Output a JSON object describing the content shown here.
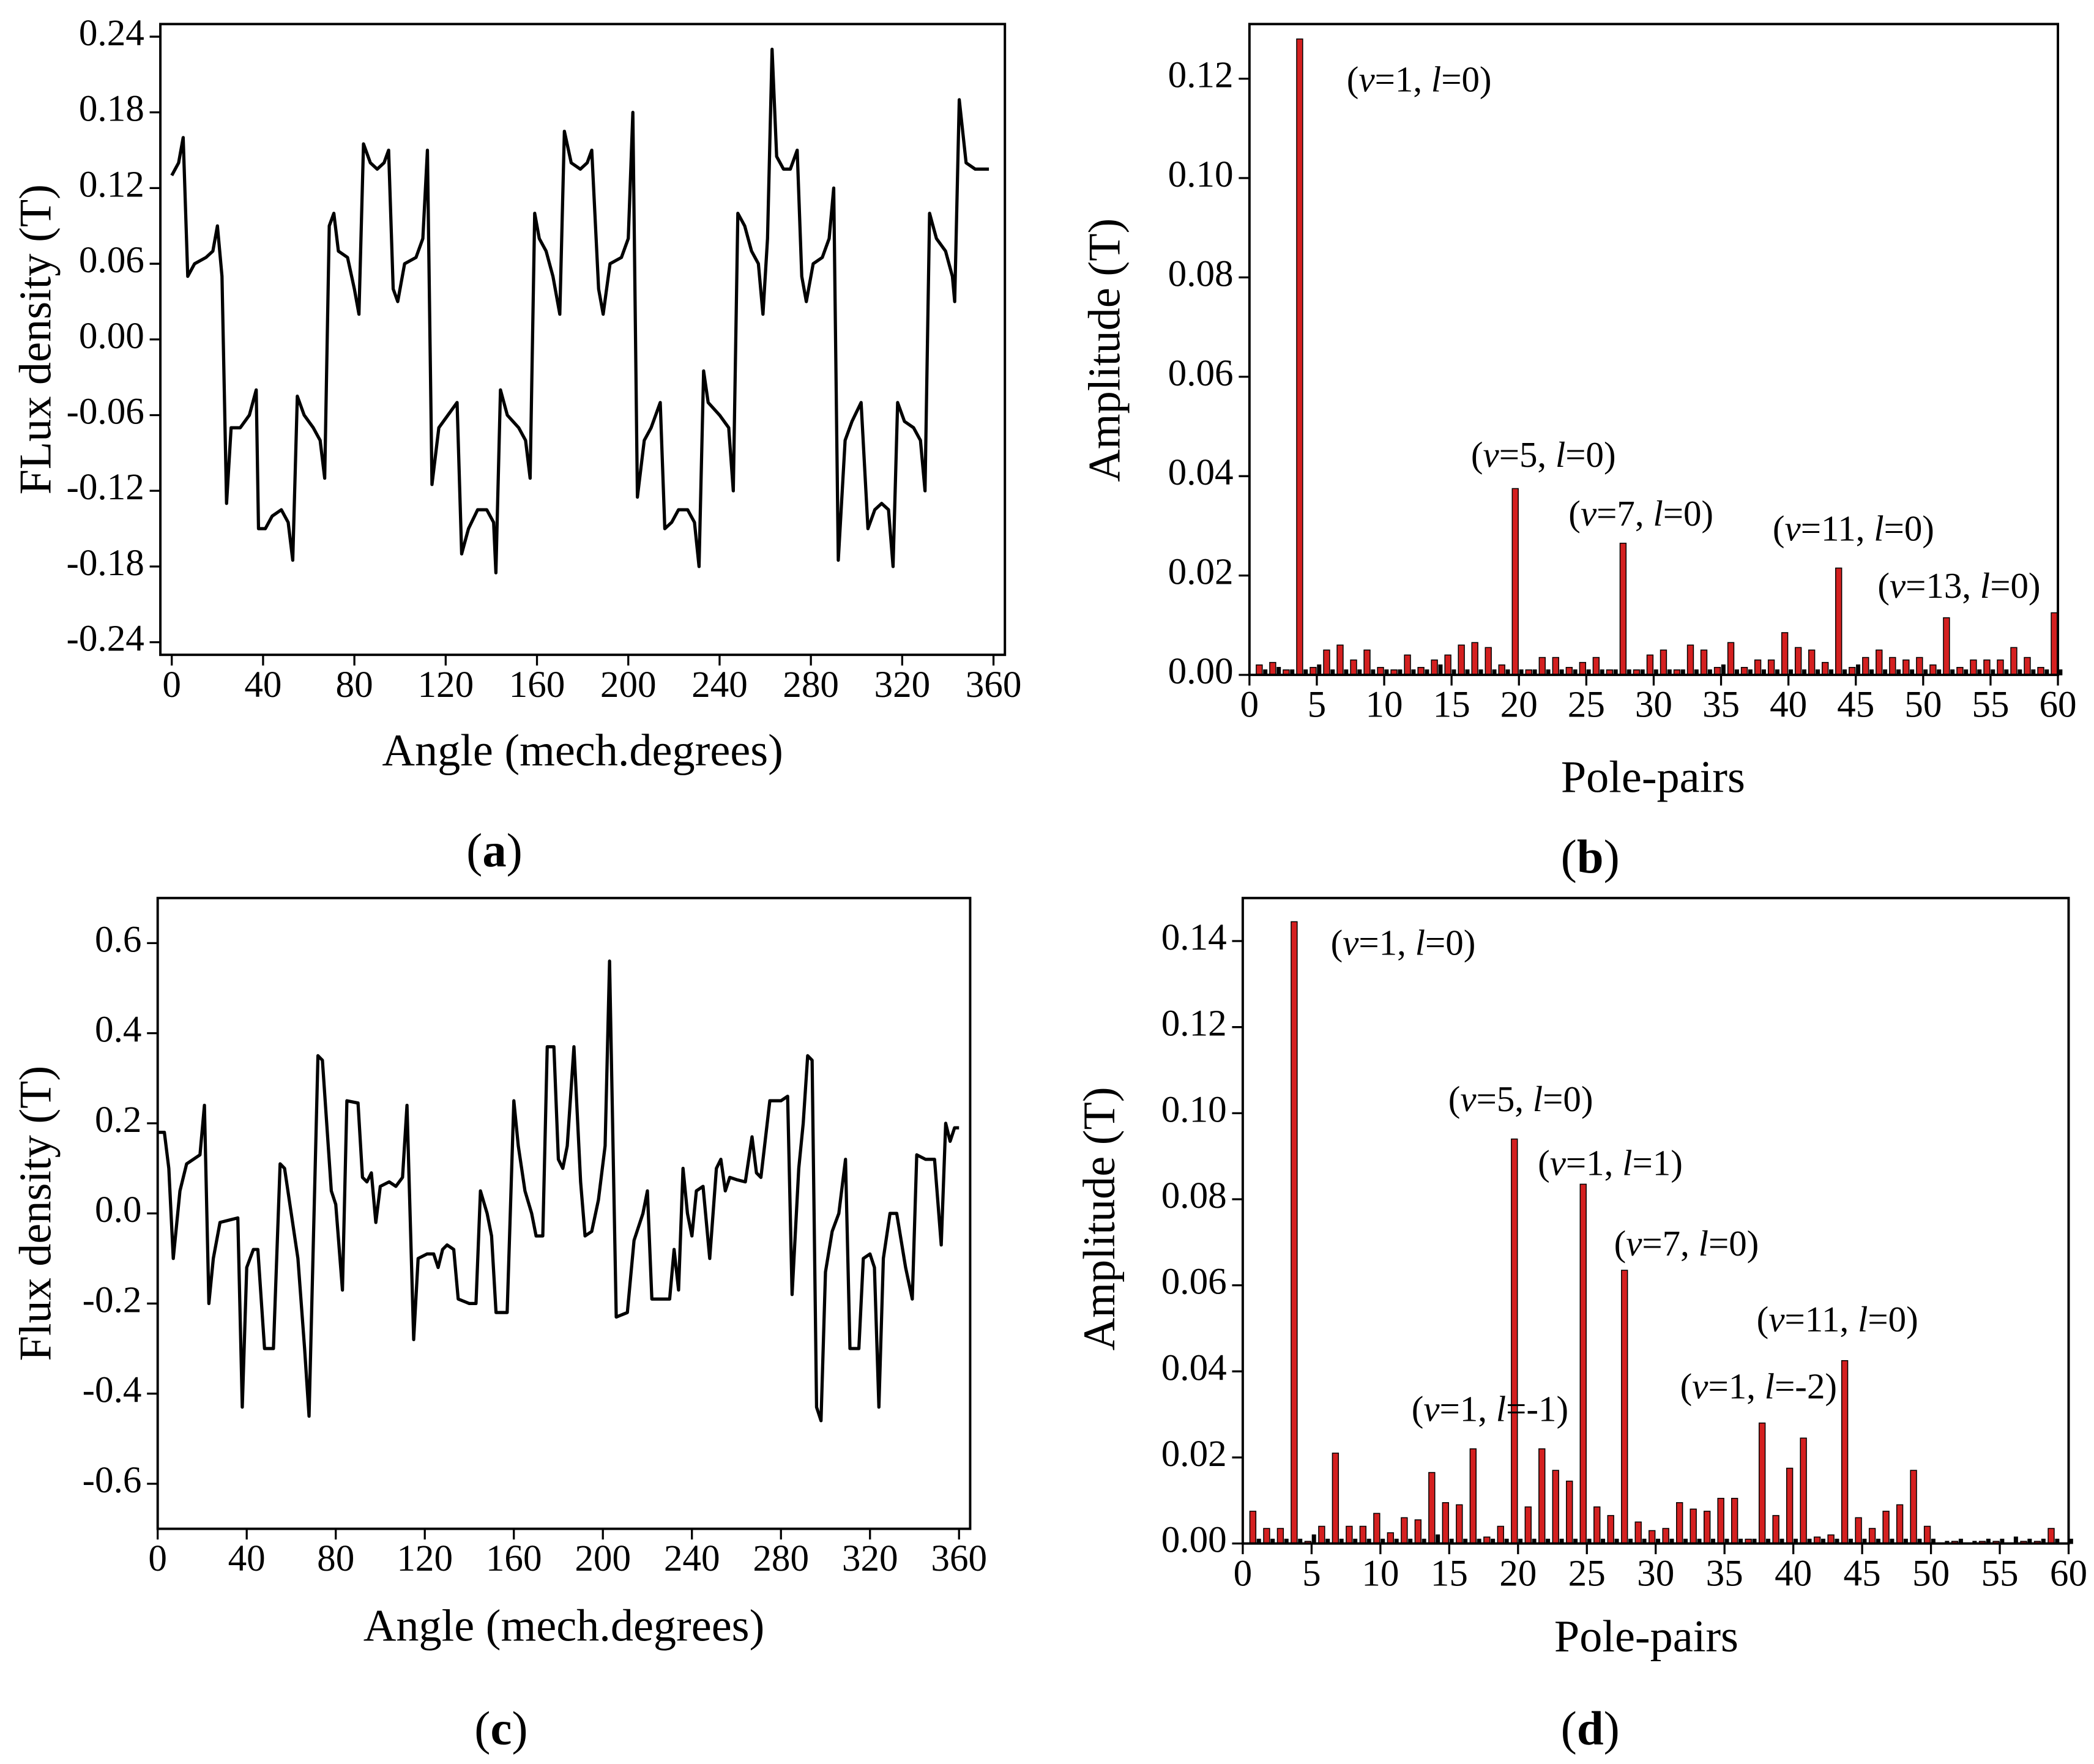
{
  "chart_data": [
    {
      "type": "line",
      "caption": "(a)",
      "xlabel": "Angle (mech.degrees)",
      "ylabel": "FLux density (T)",
      "color": "#000000",
      "xlim": [
        -5,
        365
      ],
      "ylim": [
        -0.25,
        0.25
      ],
      "xticks": [
        0,
        40,
        80,
        120,
        160,
        200,
        240,
        280,
        320,
        360
      ],
      "yticks": [
        -0.24,
        -0.18,
        -0.12,
        -0.06,
        {
          "value": 0,
          "label": "0.00"
        },
        0.06,
        0.12,
        0.18,
        0.24
      ],
      "x": [
        0,
        3,
        5,
        7,
        10,
        15,
        18,
        20,
        22,
        24,
        26,
        30,
        34,
        37,
        38,
        41,
        44,
        48,
        51,
        53,
        55,
        58,
        62,
        65,
        67,
        69,
        71,
        73,
        77,
        80,
        82,
        84,
        87,
        90,
        93,
        95,
        97,
        99,
        102,
        107,
        110,
        112,
        114,
        117,
        121,
        125,
        127,
        130,
        134,
        138,
        141,
        142,
        144,
        147,
        152,
        155,
        157,
        159,
        161,
        164,
        167,
        170,
        172,
        175,
        179,
        182,
        184,
        187,
        189,
        192,
        197,
        200,
        202,
        204,
        207,
        210,
        214,
        216,
        219,
        222,
        226,
        229,
        231,
        233,
        235,
        240,
        244,
        246,
        248,
        251,
        254,
        257,
        259,
        261,
        263,
        265,
        268,
        271,
        274,
        276,
        278,
        281,
        285,
        288,
        290,
        292,
        295,
        298,
        302,
        305,
        308,
        311,
        314,
        316,
        318,
        321,
        325,
        328,
        330,
        332,
        335,
        339,
        342,
        343,
        345,
        348,
        352,
        358
      ],
      "values": [
        0.13,
        0.14,
        0.16,
        0.05,
        0.06,
        0.065,
        0.07,
        0.09,
        0.05,
        -0.13,
        -0.07,
        -0.07,
        -0.06,
        -0.04,
        -0.15,
        -0.15,
        -0.14,
        -0.135,
        -0.145,
        -0.175,
        -0.045,
        -0.06,
        -0.07,
        -0.08,
        -0.11,
        0.09,
        0.1,
        0.07,
        0.065,
        0.04,
        0.02,
        0.155,
        0.14,
        0.135,
        0.14,
        0.15,
        0.04,
        0.03,
        0.06,
        0.065,
        0.08,
        0.15,
        -0.115,
        -0.07,
        -0.06,
        -0.05,
        -0.17,
        -0.15,
        -0.135,
        -0.135,
        -0.145,
        -0.185,
        -0.04,
        -0.06,
        -0.07,
        -0.08,
        -0.11,
        0.1,
        0.08,
        0.07,
        0.05,
        0.02,
        0.165,
        0.14,
        0.135,
        0.14,
        0.15,
        0.04,
        0.02,
        0.06,
        0.065,
        0.08,
        0.18,
        -0.125,
        -0.08,
        -0.07,
        -0.05,
        -0.15,
        -0.145,
        -0.135,
        -0.135,
        -0.145,
        -0.18,
        -0.025,
        -0.05,
        -0.06,
        -0.07,
        -0.12,
        0.1,
        0.09,
        0.07,
        0.06,
        0.02,
        0.08,
        0.23,
        0.145,
        0.135,
        0.135,
        0.15,
        0.05,
        0.03,
        0.06,
        0.065,
        0.08,
        0.12,
        -0.175,
        -0.08,
        -0.065,
        -0.05,
        -0.15,
        -0.135,
        -0.13,
        -0.135,
        -0.18,
        -0.05,
        -0.065,
        -0.07,
        -0.08,
        -0.12,
        0.1,
        0.08,
        0.07,
        0.05,
        0.03,
        0.19,
        0.14,
        0.135,
        0.135
      ]
    },
    {
      "type": "bar",
      "caption": "(b)",
      "xlabel": "Pole-pairs",
      "ylabel": "Amplitude (T)",
      "xlim": [
        0,
        60
      ],
      "ylim": [
        0,
        0.131
      ],
      "xticks": [
        0,
        5,
        10,
        15,
        20,
        25,
        30,
        35,
        40,
        45,
        50,
        55,
        60
      ],
      "yticks": [
        {
          "value": 0,
          "label": "0.00"
        },
        0.02,
        0.04,
        0.06,
        0.08,
        {
          "value": 0.1,
          "label": "0.10"
        },
        0.12
      ],
      "annotations": [
        "(v=1, l=0)",
        "(v=5, l=0)",
        "(v=7, l=0)",
        "(v=11, l=0)",
        "(v=13, l=0)"
      ],
      "x": [
        1,
        2,
        3,
        4,
        5,
        6,
        7,
        8,
        9,
        10,
        11,
        12,
        13,
        14,
        15,
        16,
        17,
        18,
        19,
        20,
        21,
        22,
        23,
        24,
        25,
        26,
        27,
        28,
        29,
        30,
        31,
        32,
        33,
        34,
        35,
        36,
        37,
        38,
        39,
        40,
        41,
        42,
        43,
        44,
        45,
        46,
        47,
        48,
        49,
        50,
        51,
        52,
        53,
        54,
        55,
        56,
        57,
        58,
        59,
        60
      ],
      "series": [
        {
          "color": "#d42020",
          "values": [
            0.002,
            0.0025,
            0.001,
            0.128,
            0.0015,
            0.005,
            0.006,
            0.003,
            0.005,
            0.0015,
            0.001,
            0.004,
            0.0015,
            0.003,
            0.004,
            0.006,
            0.0065,
            0.0055,
            0.002,
            0.0375,
            0.001,
            0.0035,
            0.0035,
            0.0015,
            0.0025,
            0.0035,
            0.001,
            0.0265,
            0.001,
            0.004,
            0.005,
            0.001,
            0.006,
            0.005,
            0.0015,
            0.0065,
            0.0015,
            0.003,
            0.003,
            0.0085,
            0.0055,
            0.005,
            0.0025,
            0.0215,
            0.0015,
            0.0035,
            0.005,
            0.0035,
            0.003,
            0.0035,
            0.002,
            0.0115,
            0.0015,
            0.003,
            0.003,
            0.003,
            0.0055,
            0.0035,
            0.0015,
            0.0125
          ]
        },
        {
          "color": "#000000",
          "values": [
            0.001,
            0.0015,
            0.001,
            0.001,
            0.002,
            0.001,
            0.001,
            0.001,
            0.001,
            0.001,
            0.001,
            0.001,
            0.001,
            0.002,
            0.001,
            0.001,
            0.001,
            0.001,
            0.001,
            0.001,
            0.001,
            0.001,
            0.001,
            0.001,
            0.001,
            0.001,
            0.001,
            0.001,
            0.001,
            0.001,
            0.001,
            0.001,
            0.001,
            0.001,
            0.002,
            0.001,
            0.001,
            0.001,
            0.001,
            0.001,
            0.001,
            0.001,
            0.001,
            0.001,
            0.002,
            0.001,
            0.001,
            0.001,
            0.001,
            0.001,
            0.001,
            0.001,
            0.001,
            0.001,
            0.001,
            0.001,
            0.001,
            0.001,
            0.001,
            0.001
          ]
        }
      ]
    },
    {
      "type": "line",
      "caption": "(c)",
      "xlabel": "Angle (mech.degrees)",
      "ylabel": "Flux density (T)",
      "color": "#000000",
      "xlim": [
        0,
        365
      ],
      "ylim": [
        -0.7,
        0.7
      ],
      "xticks": [
        0,
        40,
        80,
        120,
        160,
        200,
        240,
        280,
        320,
        360
      ],
      "yticks": [
        -0.6,
        -0.4,
        -0.2,
        {
          "value": 0,
          "label": "0.0"
        },
        0.2,
        0.4,
        0.6
      ],
      "x": [
        0,
        3,
        5,
        7,
        10,
        13,
        16,
        19,
        21,
        23,
        25,
        28,
        32,
        36,
        38,
        40,
        43,
        45,
        48,
        52,
        55,
        57,
        60,
        63,
        66,
        68,
        72,
        74,
        78,
        80,
        83,
        85,
        90,
        92,
        94,
        96,
        98,
        100,
        104,
        107,
        110,
        112,
        115,
        117,
        121,
        124,
        126,
        128,
        130,
        133,
        135,
        140,
        143,
        145,
        148,
        150,
        152,
        157,
        160,
        162,
        165,
        168,
        170,
        173,
        175,
        178,
        180,
        182,
        184,
        187,
        190,
        192,
        195,
        198,
        201,
        203,
        206,
        211,
        214,
        218,
        220,
        222,
        227,
        230,
        232,
        234,
        236,
        238,
        240,
        242,
        245,
        248,
        251,
        253,
        255,
        257,
        260,
        264,
        267,
        269,
        271,
        275,
        280,
        283,
        285,
        288,
        290,
        292,
        294,
        296,
        298,
        300,
        303,
        306,
        309,
        311,
        315,
        317,
        320,
        322,
        324,
        326,
        329,
        332,
        336,
        339,
        341,
        345,
        349,
        352,
        354,
        356,
        358,
        360
      ],
      "values": [
        0.18,
        0.18,
        0.1,
        -0.1,
        0.05,
        0.11,
        0.12,
        0.13,
        0.24,
        -0.2,
        -0.1,
        -0.02,
        -0.015,
        -0.01,
        -0.43,
        -0.12,
        -0.08,
        -0.08,
        -0.3,
        -0.3,
        0.11,
        0.1,
        0,
        -0.1,
        -0.3,
        -0.45,
        0.35,
        0.34,
        0.05,
        0.02,
        -0.17,
        0.25,
        0.245,
        0.08,
        0.07,
        0.09,
        -0.02,
        0.06,
        0.07,
        0.06,
        0.08,
        0.24,
        -0.28,
        -0.1,
        -0.09,
        -0.09,
        -0.12,
        -0.08,
        -0.07,
        -0.08,
        -0.19,
        -0.2,
        -0.2,
        0.05,
        0,
        -0.05,
        -0.22,
        -0.22,
        0.25,
        0.15,
        0.05,
        0,
        -0.05,
        -0.05,
        0.37,
        0.37,
        0.12,
        0.1,
        0.15,
        0.37,
        0.07,
        -0.05,
        -0.04,
        0.03,
        0.15,
        0.56,
        -0.23,
        -0.22,
        -0.06,
        0,
        0.05,
        -0.19,
        -0.19,
        -0.19,
        -0.08,
        -0.17,
        0.1,
        0,
        -0.05,
        0.05,
        0.06,
        -0.1,
        0.1,
        0.12,
        0.05,
        0.08,
        0.075,
        0.07,
        0.17,
        0.09,
        0.08,
        0.25,
        0.25,
        0.26,
        -0.18,
        0.1,
        0.2,
        0.35,
        0.34,
        -0.43,
        -0.46,
        -0.13,
        -0.04,
        0,
        0.12,
        -0.3,
        -0.3,
        -0.1,
        -0.09,
        -0.12,
        -0.43,
        -0.1,
        0,
        0,
        -0.12,
        -0.19,
        0.13,
        0.12,
        0.12,
        -0.07,
        0.2,
        0.16,
        0.19,
        0.19
      ]
    },
    {
      "type": "bar",
      "caption": "(d)",
      "xlabel": "Pole-pairs",
      "ylabel": "Amplitude (T)",
      "xlim": [
        0,
        60
      ],
      "ylim": [
        0,
        0.15
      ],
      "xticks": [
        0,
        5,
        10,
        15,
        20,
        25,
        30,
        35,
        40,
        45,
        50,
        55,
        60
      ],
      "yticks": [
        {
          "value": 0,
          "label": "0.00"
        },
        0.02,
        0.04,
        0.06,
        0.08,
        {
          "value": 0.1,
          "label": "0.10"
        },
        0.12,
        0.14
      ],
      "annotations": [
        "(v=1, l=0)",
        "(v=5, l=0)",
        "(v=1, l=1)",
        "(v=7, l=0)",
        "(v=1, l=-1)",
        "(v=1, l=-2)",
        "(v=11, l=0)"
      ],
      "x": [
        1,
        2,
        3,
        4,
        5,
        6,
        7,
        8,
        9,
        10,
        11,
        12,
        13,
        14,
        15,
        16,
        17,
        18,
        19,
        20,
        21,
        22,
        23,
        24,
        25,
        26,
        27,
        28,
        29,
        30,
        31,
        32,
        33,
        34,
        35,
        36,
        37,
        38,
        39,
        40,
        41,
        42,
        43,
        44,
        45,
        46,
        47,
        48,
        49,
        50,
        51,
        52,
        53,
        54,
        55,
        56,
        57,
        58,
        59,
        60
      ],
      "series": [
        {
          "color": "#d42020",
          "values": [
            0.0075,
            0.0035,
            0.0035,
            0.1445,
            0.0005,
            0.004,
            0.021,
            0.004,
            0.004,
            0.007,
            0.0025,
            0.006,
            0.0055,
            0.0165,
            0.0095,
            0.009,
            0.022,
            0.0015,
            0.004,
            0.094,
            0.0085,
            0.022,
            0.017,
            0.0145,
            0.0835,
            0.0085,
            0.0065,
            0.0635,
            0.005,
            0.003,
            0.0035,
            0.0095,
            0.008,
            0.0075,
            0.0105,
            0.0105,
            0.001,
            0.028,
            0.0065,
            0.0175,
            0.0245,
            0.0015,
            0.002,
            0.0425,
            0.006,
            0.0035,
            0.0075,
            0.009,
            0.017,
            0.004,
            0,
            0.0005,
            0,
            0.0005,
            0.0005,
            0,
            0.0005,
            0.0005,
            0.0035,
            0
          ]
        },
        {
          "color": "#000000",
          "values": [
            0.001,
            0.001,
            0.001,
            0.001,
            0.002,
            0.001,
            0.001,
            0.001,
            0.001,
            0.001,
            0.001,
            0.001,
            0.001,
            0.002,
            0.001,
            0.001,
            0.001,
            0.001,
            0.001,
            0.001,
            0.001,
            0.001,
            0.001,
            0.001,
            0.001,
            0.001,
            0.001,
            0.001,
            0.001,
            0.001,
            0.001,
            0.001,
            0.001,
            0.001,
            0.001,
            0.001,
            0.001,
            0.001,
            0.001,
            0.001,
            0.001,
            0.001,
            0.001,
            0.001,
            0.001,
            0.001,
            0.001,
            0.001,
            0.001,
            0.001,
            0.0005,
            0.001,
            0.0005,
            0.001,
            0.001,
            0.0015,
            0.001,
            0.001,
            0.001,
            0.001
          ]
        }
      ]
    }
  ]
}
